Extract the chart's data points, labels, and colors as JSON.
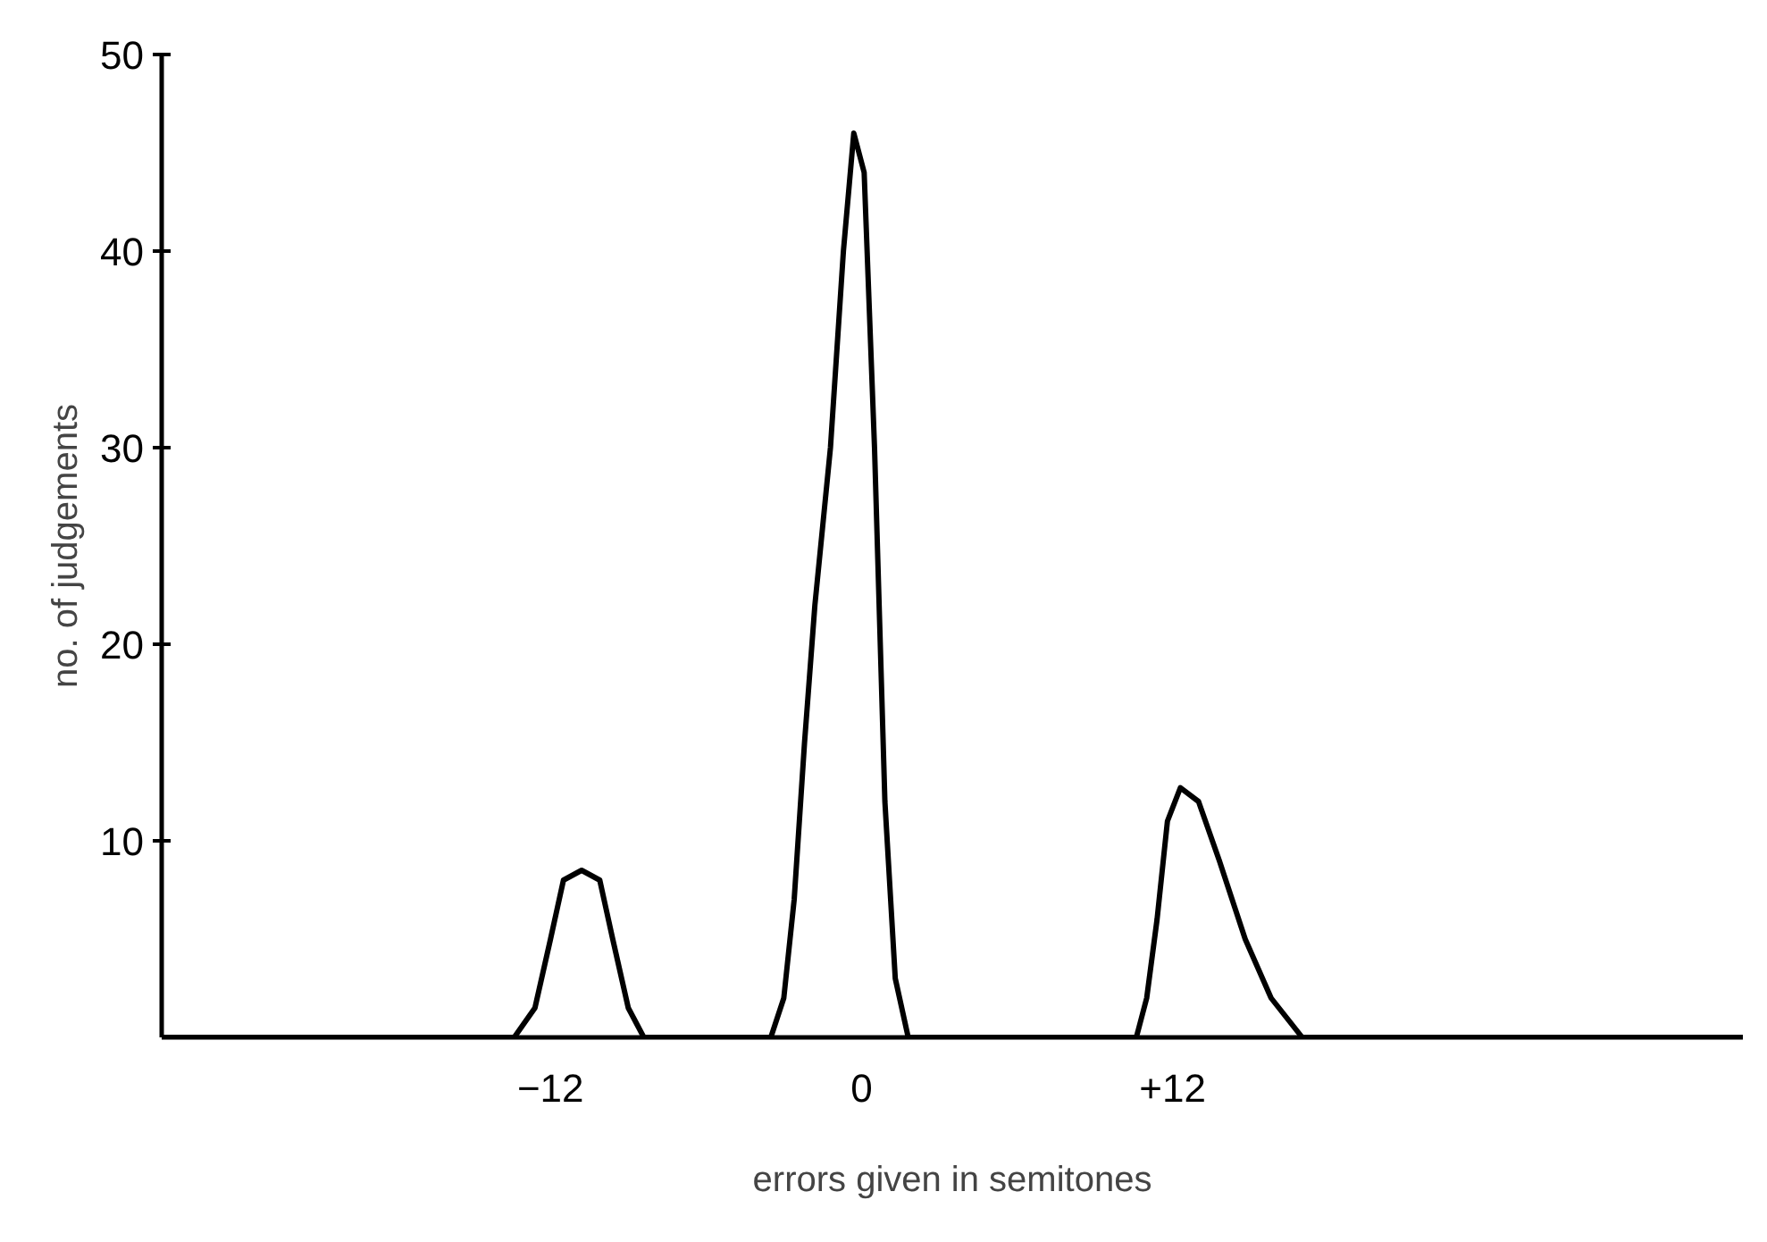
{
  "chart_data": {
    "type": "line",
    "xlabel": "errors given in semitones",
    "ylabel": "no. of judgements",
    "xlim": [
      -27,
      34
    ],
    "ylim": [
      0,
      50
    ],
    "xticks": [
      -12,
      0,
      {
        "value": 12,
        "label": "+12"
      }
    ],
    "yticks": [
      10,
      20,
      30,
      40,
      50
    ],
    "grid": false,
    "marker": "none",
    "line_style": "solid",
    "series": [
      {
        "color": "#000000",
        "x": [
          -27,
          -13.4,
          -12.6,
          -12.0,
          -11.5,
          -10.8,
          -10.1,
          -9.6,
          -9.0,
          -8.4,
          -3.5,
          -3.0,
          -2.6,
          -2.2,
          -1.8,
          -1.2,
          -0.7,
          -0.3,
          0.1,
          0.5,
          0.9,
          1.3,
          1.8,
          10.6,
          11.0,
          11.4,
          11.8,
          12.3,
          13.0,
          13.8,
          14.8,
          15.8,
          17.0,
          34
        ],
        "values": [
          0,
          0,
          1.5,
          5,
          8,
          8.5,
          8,
          5,
          1.5,
          0,
          0,
          2,
          7,
          15,
          22,
          30,
          40,
          46,
          44,
          30,
          12,
          3,
          0,
          0,
          2,
          6,
          11,
          12.7,
          12,
          9,
          5,
          2,
          0,
          0
        ]
      }
    ]
  }
}
